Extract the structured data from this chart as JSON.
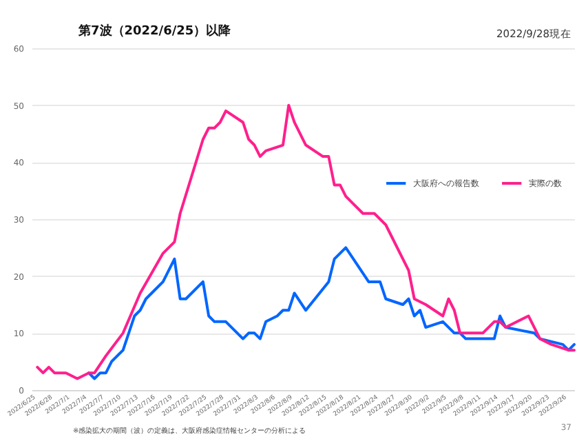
{
  "chart_data": {
    "type": "line",
    "title": "第7波（2022/6/25）以降",
    "annotations": [
      "2022/9/28現在",
      "※感染拡大の期間（波）の定義は、大阪府感染症情報センターの分析による",
      "37"
    ],
    "xlim": [
      "2022-06-25",
      "2022-09-28"
    ],
    "xticks": [
      {
        "value": "2022-06-25",
        "label": "2022/6/25"
      },
      {
        "value": "2022-06-28",
        "label": "2022/6/28"
      },
      {
        "value": "2022-07-01",
        "label": "2022/7/1"
      },
      {
        "value": "2022-07-04",
        "label": "2022/7/4"
      },
      {
        "value": "2022-07-07",
        "label": "2022/7/7"
      },
      {
        "value": "2022-07-10",
        "label": "2022/7/10"
      },
      {
        "value": "2022-07-13",
        "label": "2022/7/13"
      },
      {
        "value": "2022-07-16",
        "label": "2022/7/16"
      },
      {
        "value": "2022-07-19",
        "label": "2022/7/19"
      },
      {
        "value": "2022-07-22",
        "label": "2022/7/22"
      },
      {
        "value": "2022-07-25",
        "label": "2022/7/25"
      },
      {
        "value": "2022-07-28",
        "label": "2022/7/28"
      },
      {
        "value": "2022-07-31",
        "label": "2022/7/31"
      },
      {
        "value": "2022-08-03",
        "label": "2022/8/3"
      },
      {
        "value": "2022-08-06",
        "label": "2022/8/6"
      },
      {
        "value": "2022-08-09",
        "label": "2022/8/9"
      },
      {
        "value": "2022-08-12",
        "label": "2022/8/12"
      },
      {
        "value": "2022-08-15",
        "label": "2022/8/15"
      },
      {
        "value": "2022-08-18",
        "label": "2022/8/18"
      },
      {
        "value": "2022-08-21",
        "label": "2022/8/21"
      },
      {
        "value": "2022-08-24",
        "label": "2022/8/24"
      },
      {
        "value": "2022-08-27",
        "label": "2022/8/27"
      },
      {
        "value": "2022-08-30",
        "label": "2022/8/30"
      },
      {
        "value": "2022-09-02",
        "label": "2022/9/2"
      },
      {
        "value": "2022-09-05",
        "label": "2022/9/5"
      },
      {
        "value": "2022-09-08",
        "label": "2022/9/8"
      },
      {
        "value": "2022-09-11",
        "label": "2022/9/11"
      },
      {
        "value": "2022-09-14",
        "label": "2022/9/14"
      },
      {
        "value": "2022-09-17",
        "label": "2022/9/17"
      },
      {
        "value": "2022-09-20",
        "label": "2022/9/20"
      },
      {
        "value": "2022-09-23",
        "label": "2022/9/23"
      },
      {
        "value": "2022-09-26",
        "label": "2022/9/26"
      }
    ],
    "ylim": [
      0,
      60
    ],
    "yticks": [
      0,
      10,
      20,
      30,
      40,
      50,
      60
    ],
    "grid": "y",
    "legend": "top right",
    "series": [
      {
        "name": "大阪府への報告数",
        "color": "#0066ff",
        "x": [
          "2022-07-05",
          "2022-07-06",
          "2022-07-07",
          "2022-07-08",
          "2022-07-09",
          "2022-07-11",
          "2022-07-12",
          "2022-07-13",
          "2022-07-14",
          "2022-07-15",
          "2022-07-16",
          "2022-07-18",
          "2022-07-20",
          "2022-07-21",
          "2022-07-22",
          "2022-07-25",
          "2022-07-26",
          "2022-07-27",
          "2022-07-29",
          "2022-08-01",
          "2022-08-02",
          "2022-08-03",
          "2022-08-04",
          "2022-08-05",
          "2022-08-07",
          "2022-08-08",
          "2022-08-09",
          "2022-08-10",
          "2022-08-12",
          "2022-08-16",
          "2022-08-17",
          "2022-08-19",
          "2022-08-21",
          "2022-08-23",
          "2022-08-25",
          "2022-08-26",
          "2022-08-29",
          "2022-08-30",
          "2022-08-31",
          "2022-09-01",
          "2022-09-02",
          "2022-09-05",
          "2022-09-07",
          "2022-09-08",
          "2022-09-09",
          "2022-09-14",
          "2022-09-15",
          "2022-09-16",
          "2022-09-21",
          "2022-09-22",
          "2022-09-26",
          "2022-09-27",
          "2022-09-28"
        ],
        "values": [
          3,
          2,
          3,
          3,
          5,
          7,
          10,
          13,
          14,
          16,
          17,
          19,
          23,
          16,
          16,
          19,
          13,
          12,
          12,
          9,
          10,
          10,
          9,
          12,
          13,
          14,
          14,
          17,
          14,
          19,
          23,
          25,
          22,
          19,
          19,
          16,
          15,
          16,
          13,
          14,
          11,
          12,
          10,
          10,
          9,
          9,
          13,
          11,
          10,
          9,
          8,
          7,
          8
        ]
      },
      {
        "name": "実際の数",
        "color": "#ff1f8c",
        "x": [
          "2022-06-26",
          "2022-06-27",
          "2022-06-28",
          "2022-06-29",
          "2022-07-01",
          "2022-07-03",
          "2022-07-05",
          "2022-07-06",
          "2022-07-08",
          "2022-07-11",
          "2022-07-14",
          "2022-07-18",
          "2022-07-20",
          "2022-07-21",
          "2022-07-25",
          "2022-07-26",
          "2022-07-27",
          "2022-07-28",
          "2022-07-29",
          "2022-08-01",
          "2022-08-02",
          "2022-08-03",
          "2022-08-04",
          "2022-08-05",
          "2022-08-08",
          "2022-08-09",
          "2022-08-10",
          "2022-08-12",
          "2022-08-15",
          "2022-08-16",
          "2022-08-17",
          "2022-08-18",
          "2022-08-19",
          "2022-08-22",
          "2022-08-24",
          "2022-08-26",
          "2022-08-30",
          "2022-08-31",
          "2022-09-02",
          "2022-09-05",
          "2022-09-06",
          "2022-09-07",
          "2022-09-08",
          "2022-09-12",
          "2022-09-14",
          "2022-09-15",
          "2022-09-16",
          "2022-09-20",
          "2022-09-22",
          "2022-09-24",
          "2022-09-27",
          "2022-09-28"
        ],
        "values": [
          4,
          3,
          4,
          3,
          3,
          2,
          3,
          3,
          6,
          10,
          17,
          24,
          26,
          31,
          44,
          46,
          46,
          47,
          49,
          47,
          44,
          43,
          41,
          42,
          43,
          50,
          47,
          43,
          41,
          41,
          36,
          36,
          34,
          31,
          31,
          29,
          21,
          16,
          15,
          13,
          16,
          14,
          10,
          10,
          12,
          12,
          11,
          13,
          9,
          8,
          7,
          7
        ]
      }
    ]
  }
}
